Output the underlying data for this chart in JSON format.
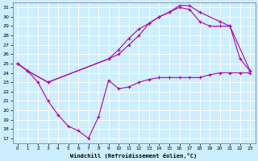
{
  "xlabel": "Windchill (Refroidissement éolien,°C)",
  "xlim": [
    -0.5,
    23.5
  ],
  "ylim": [
    16.5,
    31.5
  ],
  "yticks": [
    17,
    18,
    19,
    20,
    21,
    22,
    23,
    24,
    25,
    26,
    27,
    28,
    29,
    30,
    31
  ],
  "xticks": [
    0,
    1,
    2,
    3,
    4,
    5,
    6,
    7,
    8,
    9,
    10,
    11,
    12,
    13,
    14,
    15,
    16,
    17,
    18,
    19,
    20,
    21,
    22,
    23
  ],
  "bg_color": "#cceeff",
  "grid_color": "#ffffff",
  "line_color": "#aa00aa",
  "line1_x": [
    0,
    1,
    2,
    3,
    4,
    5,
    6,
    7,
    8,
    9,
    10,
    11,
    12,
    13,
    14,
    15,
    16,
    17,
    18,
    19,
    20,
    21,
    22,
    23
  ],
  "line1_y": [
    25.0,
    24.2,
    23.0,
    21.0,
    19.5,
    18.3,
    17.8,
    17.0,
    19.3,
    23.2,
    22.3,
    22.5,
    23.0,
    23.3,
    23.5,
    23.5,
    23.5,
    23.5,
    23.5,
    23.8,
    24.0,
    24.0,
    24.0,
    24.0
  ],
  "line2_x": [
    0,
    1,
    3,
    9,
    10,
    11,
    12,
    13,
    14,
    15,
    16,
    17,
    18,
    20,
    21,
    22,
    23
  ],
  "line2_y": [
    25.0,
    24.2,
    23.0,
    25.5,
    26.5,
    27.7,
    28.7,
    29.3,
    30.0,
    30.5,
    31.2,
    31.2,
    30.5,
    29.5,
    29.0,
    25.5,
    24.2
  ],
  "line3_x": [
    0,
    1,
    3,
    9,
    10,
    11,
    12,
    13,
    14,
    15,
    16,
    17,
    18,
    19,
    20,
    21,
    23
  ],
  "line3_y": [
    25.0,
    24.2,
    23.0,
    25.5,
    26.0,
    27.0,
    28.0,
    29.3,
    30.0,
    30.5,
    31.0,
    30.8,
    29.5,
    29.0,
    29.0,
    29.0,
    24.2
  ]
}
